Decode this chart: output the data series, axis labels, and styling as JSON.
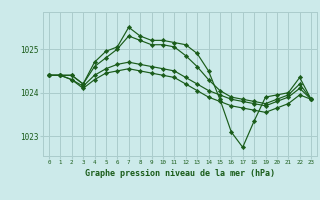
{
  "background_color": "#cceaea",
  "grid_color": "#aacccc",
  "line_color": "#1a5c1a",
  "x_ticks": [
    0,
    1,
    2,
    3,
    4,
    5,
    6,
    7,
    8,
    9,
    10,
    11,
    12,
    13,
    14,
    15,
    16,
    17,
    18,
    19,
    20,
    21,
    22,
    23
  ],
  "y_ticks": [
    1023,
    1024,
    1025
  ],
  "ylim": [
    1022.55,
    1025.85
  ],
  "xlim": [
    -0.5,
    23.5
  ],
  "xlabel": "Graphe pression niveau de la mer (hPa)",
  "series": [
    [
      1024.4,
      1024.4,
      1024.4,
      1024.2,
      1024.7,
      1024.95,
      1025.05,
      1025.5,
      1025.3,
      1025.2,
      1025.2,
      1025.15,
      1025.1,
      1024.9,
      1024.5,
      1023.85,
      1023.1,
      1022.75,
      1023.35,
      1023.9,
      1023.95,
      1024.0,
      1024.35,
      1023.85
    ],
    [
      1024.4,
      1024.4,
      1024.4,
      1024.2,
      1024.6,
      1024.8,
      1025.0,
      1025.3,
      1025.2,
      1025.1,
      1025.1,
      1025.05,
      1024.85,
      1024.6,
      1024.3,
      1024.05,
      1023.9,
      1023.85,
      1023.8,
      1023.75,
      1023.85,
      1023.95,
      1024.2,
      1023.85
    ],
    [
      1024.4,
      1024.4,
      1024.3,
      1024.15,
      1024.4,
      1024.55,
      1024.65,
      1024.7,
      1024.65,
      1024.6,
      1024.55,
      1024.5,
      1024.35,
      1024.2,
      1024.05,
      1023.95,
      1023.85,
      1023.8,
      1023.75,
      1023.7,
      1023.8,
      1023.9,
      1024.1,
      1023.85
    ],
    [
      1024.4,
      1024.4,
      1024.3,
      1024.1,
      1024.3,
      1024.45,
      1024.5,
      1024.55,
      1024.5,
      1024.45,
      1024.4,
      1024.35,
      1024.2,
      1024.05,
      1023.9,
      1023.8,
      1023.7,
      1023.65,
      1023.6,
      1023.55,
      1023.65,
      1023.75,
      1023.95,
      1023.85
    ]
  ]
}
